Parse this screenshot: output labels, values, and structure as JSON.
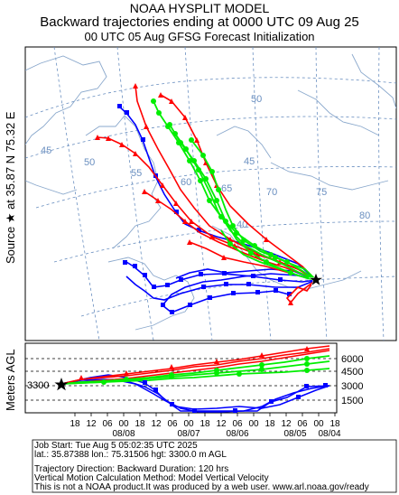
{
  "header": {
    "model": "NOAA HYSPLIT MODEL",
    "title": "Backward trajectories ending at 0000 UTC 09 Aug 25",
    "subtitle": "00 UTC 05 Aug    GFSG  Forecast Initialization"
  },
  "source_label": "Source ★ at   35.87 N   75.32 E",
  "source": {
    "lat": 35.87,
    "lon": 75.32
  },
  "map": {
    "grid_labels": [
      "45",
      "50",
      "55",
      "60",
      "65",
      "70",
      "75",
      "80",
      "40",
      "50",
      "45"
    ]
  },
  "height_panel": {
    "ylabel": "Meters AGL",
    "source_height_label": "3300",
    "y_ticks": [
      "6000",
      "4500",
      "3000",
      "1500"
    ],
    "x_ticks": [
      "18",
      "12",
      "06",
      "00",
      "18",
      "12",
      "06",
      "00",
      "18",
      "12",
      "06",
      "00",
      "18",
      "12",
      "06",
      "00",
      "18",
      "12",
      "06",
      "00"
    ],
    "dates": [
      "08/08",
      "08/07",
      "08/06",
      "08/05",
      "08/04"
    ]
  },
  "footer": {
    "job_start": "Job Start: Tue Aug  5 05:02:35 UTC 2025",
    "coords": "lat.: 35.87388   lon.: 75.31506   hgt: 3300.0 m AGL",
    "direction": "Trajectory Direction: Backward       Duration: 120 hrs",
    "vertical": "Vertical Motion Calculation Method: Model Vertical Velocity",
    "disclaimer": "This is not a NOAA product.It was produced by a web user. www.arl.noaa.gov/ready"
  },
  "colors": {
    "red": "#ff0000",
    "blue": "#0000ff",
    "green": "#00ee00",
    "grid": "#6a8fc0"
  }
}
